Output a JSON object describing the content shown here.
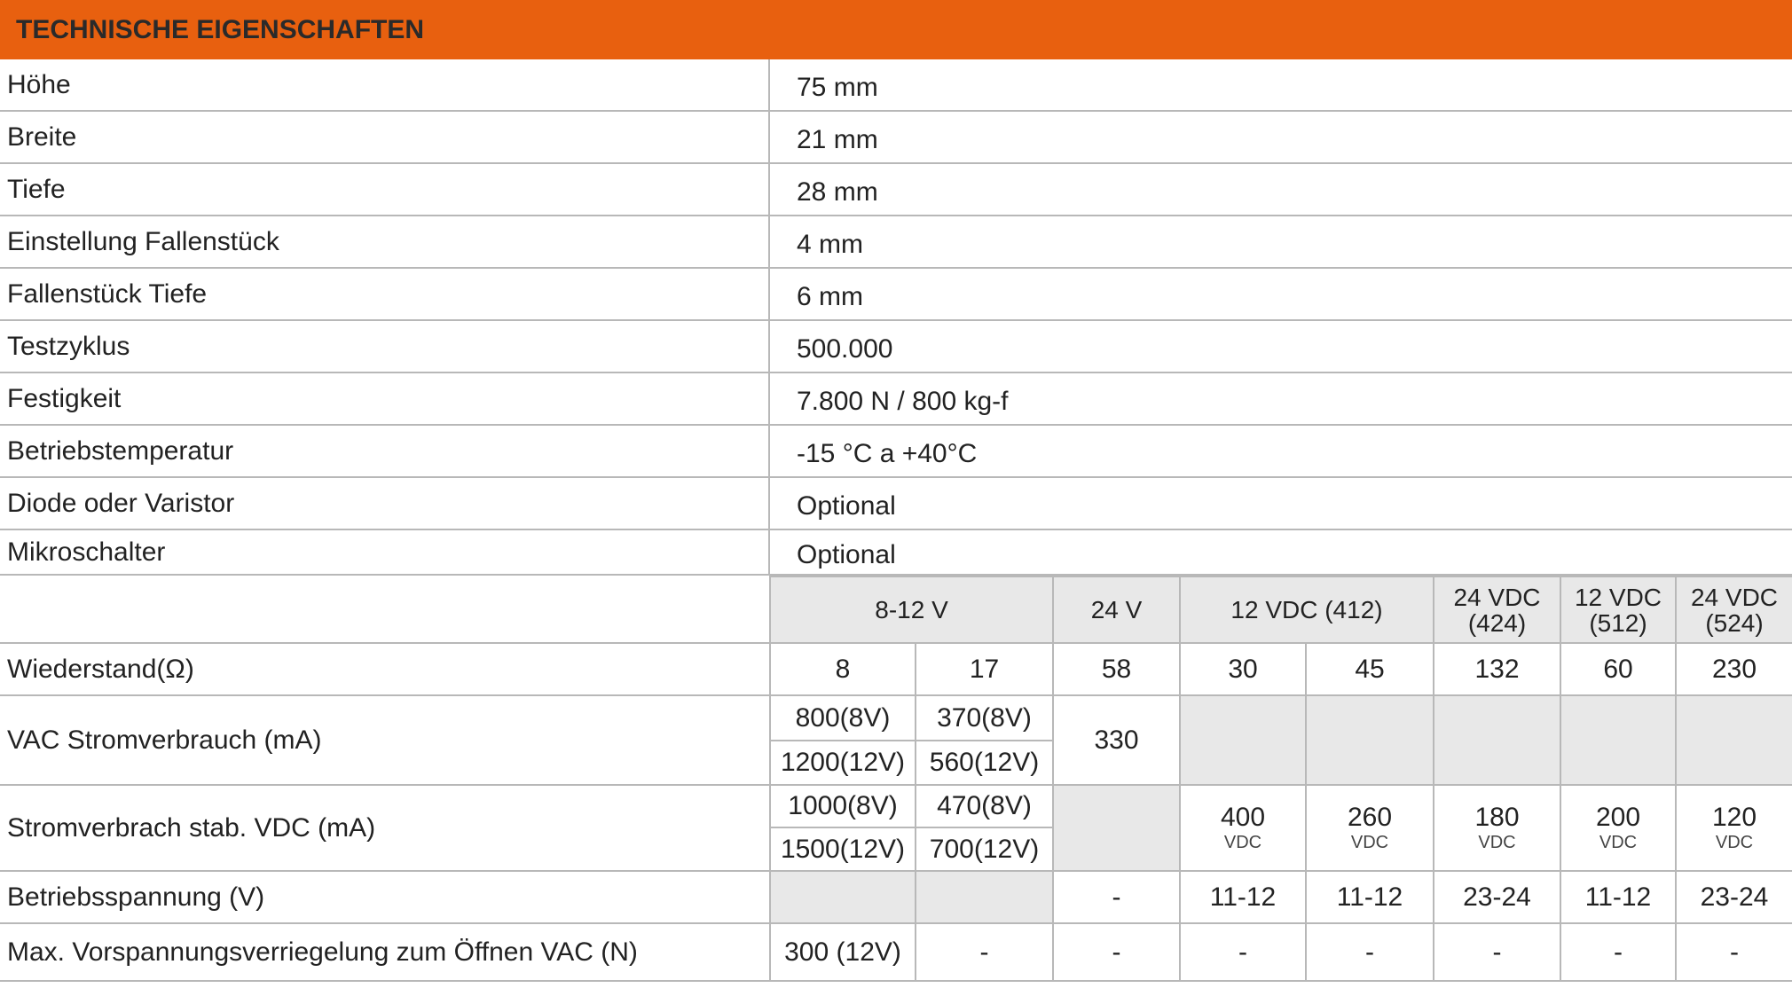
{
  "title": "TECHNISCHE EIGENSCHAFTEN",
  "colors": {
    "header": "#e8600f",
    "grey_cell": "#e8e8e8"
  },
  "specs": [
    {
      "label": "Höhe",
      "value": "75 mm"
    },
    {
      "label": "Breite",
      "value": "21 mm"
    },
    {
      "label": "Tiefe",
      "value": "28 mm"
    },
    {
      "label": "Einstellung Fallenstück",
      "value": "4 mm"
    },
    {
      "label": "Fallenstück Tiefe",
      "value": "6 mm"
    },
    {
      "label": "Testzyklus",
      "value": "500.000"
    },
    {
      "label": "Festigkeit",
      "value": "7.800 N / 800 kg-f"
    },
    {
      "label": "Betriebstemperatur",
      "value": "-15 °C a +40°C"
    },
    {
      "label": "Diode oder Varistor",
      "value": "Optional"
    },
    {
      "label": "Mikroschalter",
      "value": "Optional"
    }
  ],
  "voltage_table": {
    "headers": [
      "8-12 V",
      "24 V",
      "12 VDC (412)",
      "24 VDC",
      "(424)",
      "12 VDC",
      "(512)",
      "24 VDC",
      "(524)"
    ],
    "resistance": {
      "label": "Wiederstand(Ω)",
      "values": [
        "8",
        "17",
        "58",
        "30",
        "45",
        "132",
        "60",
        "230"
      ]
    },
    "vac": {
      "label": "VAC Stromverbrauch  (mA)",
      "a1": "800(8V)",
      "b1": "370(8V)",
      "a2": "1200(12V)",
      "b2": "560(12V)",
      "c": "330"
    },
    "vdc": {
      "label": "Stromverbrach stab. VDC (mA)",
      "a1": "1000(8V)",
      "b1": "470(8V)",
      "a2": "1500(12V)",
      "b2": "700(12V)",
      "values": [
        "400",
        "260",
        "180",
        "200",
        "120"
      ],
      "unit": "VDC"
    },
    "voltage": {
      "label": "Betriebsspannung (V)",
      "values": [
        "-",
        "11-12",
        "11-12",
        "23-24",
        "11-12",
        "23-24"
      ]
    },
    "max": {
      "label": "Max. Vorspannungsverriegelung zum Öffnen VAC (N)",
      "values": [
        "300 (12V)",
        "-",
        "-",
        "-",
        "-",
        "-",
        "-",
        "-"
      ]
    }
  }
}
